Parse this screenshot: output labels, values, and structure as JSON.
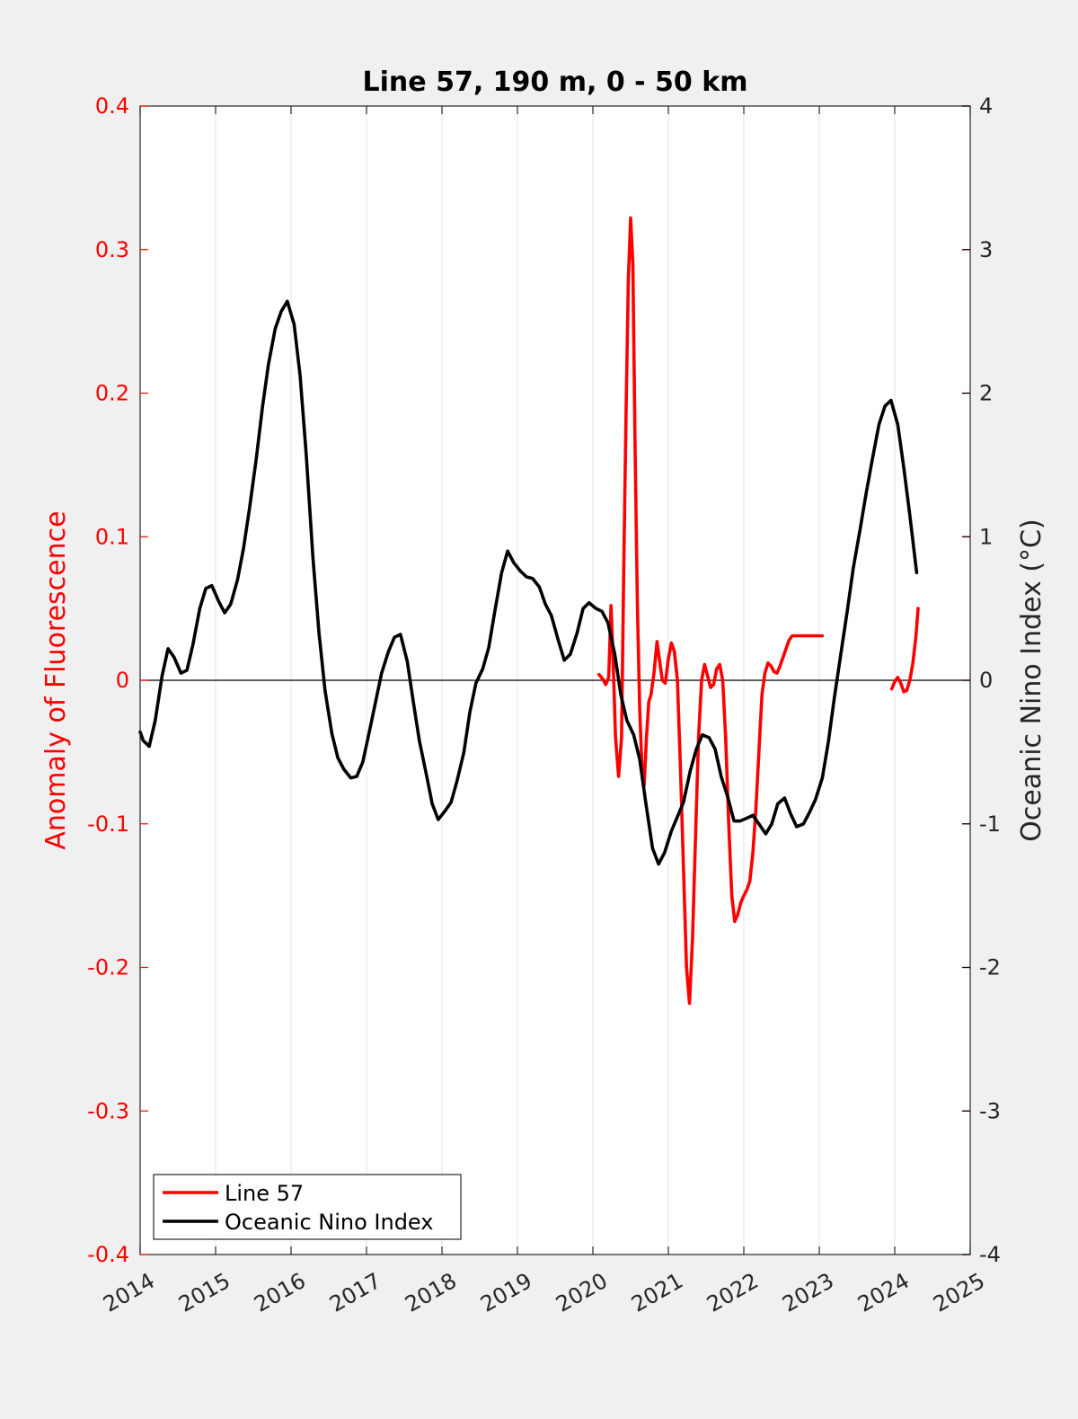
{
  "colors": {
    "background": "#f0f0f0",
    "plot_bg": "#ffffff",
    "fluorescence": "#ff0000",
    "oni": "#000000",
    "grid": "#e3e3e3",
    "axis_dark": "#262626"
  },
  "chart_data": {
    "type": "line",
    "title": "Line 57, 190 m, 0 - 50 km",
    "xlim": [
      2014,
      2025
    ],
    "x_ticks": [
      2014,
      2015,
      2016,
      2017,
      2018,
      2019,
      2020,
      2021,
      2022,
      2023,
      2024,
      2025
    ],
    "x_tick_labels": [
      "2014",
      "2015",
      "2016",
      "2017",
      "2018",
      "2019",
      "2020",
      "2021",
      "2022",
      "2023",
      "2024",
      "2025"
    ],
    "grid": "vertical",
    "left_axis": {
      "label": "Anomaly of Fluorescence",
      "lim": [
        -0.4,
        0.4
      ],
      "ticks": [
        -0.4,
        -0.3,
        -0.2,
        -0.1,
        0,
        0.1,
        0.2,
        0.3,
        0.4
      ],
      "tick_labels": [
        "-0.4",
        "-0.3",
        "-0.2",
        "-0.1",
        "0",
        "0.1",
        "0.2",
        "0.3",
        "0.4"
      ],
      "color": "#ff0000"
    },
    "right_axis": {
      "label": "Oceanic Nino Index (°C)",
      "lim": [
        -4,
        4
      ],
      "ticks": [
        -4,
        -3,
        -2,
        -1,
        0,
        1,
        2,
        3,
        4
      ],
      "tick_labels": [
        "-4",
        "-3",
        "-2",
        "-1",
        "0",
        "1",
        "2",
        "3",
        "4"
      ],
      "color": "#000000"
    },
    "zero_line": 0,
    "legend": {
      "position": "bottom-left",
      "entries": [
        "Line 57",
        "Oceanic Nino Index"
      ]
    },
    "series": [
      {
        "name": "Line 57",
        "axis": "left",
        "color": "#ff0000",
        "segments": [
          {
            "x": [
              2020.08,
              2020.13,
              2020.17,
              2020.21,
              2020.24,
              2020.27,
              2020.3,
              2020.34,
              2020.38,
              2020.41,
              2020.44,
              2020.47,
              2020.5,
              2020.53,
              2020.56,
              2020.59,
              2020.62,
              2020.65,
              2020.68,
              2020.71,
              2020.74,
              2020.77,
              2020.81,
              2020.85,
              2020.88,
              2020.92,
              2020.96,
              2021.0,
              2021.04,
              2021.08,
              2021.12,
              2021.16,
              2021.2,
              2021.24,
              2021.28,
              2021.32,
              2021.36,
              2021.4,
              2021.44,
              2021.48,
              2021.52,
              2021.56,
              2021.6,
              2021.64,
              2021.68,
              2021.72,
              2021.76,
              2021.8,
              2021.84,
              2021.88,
              2021.92,
              2021.96,
              2022.0,
              2022.04,
              2022.08,
              2022.12,
              2022.16,
              2022.2,
              2022.24,
              2022.28,
              2022.32,
              2022.36,
              2022.4,
              2022.44,
              2022.48,
              2022.52,
              2022.56,
              2022.6,
              2022.64,
              2022.68,
              2022.72,
              2022.76,
              2022.8,
              2022.84,
              2022.88,
              2022.92,
              2022.96,
              2023.0,
              2023.04
            ],
            "y": [
              0.004,
              0.001,
              -0.003,
              0.002,
              0.052,
              0.01,
              -0.04,
              -0.067,
              -0.04,
              0.08,
              0.19,
              0.28,
              0.322,
              0.29,
              0.16,
              0.05,
              -0.02,
              -0.06,
              -0.073,
              -0.04,
              -0.015,
              -0.01,
              0.005,
              0.027,
              0.015,
              0.0,
              -0.002,
              0.015,
              0.026,
              0.02,
              0.0,
              -0.06,
              -0.13,
              -0.2,
              -0.225,
              -0.18,
              -0.11,
              -0.04,
              0.0,
              0.011,
              0.003,
              -0.005,
              -0.003,
              0.008,
              0.011,
              0.0,
              -0.04,
              -0.1,
              -0.15,
              -0.168,
              -0.163,
              -0.155,
              -0.15,
              -0.146,
              -0.14,
              -0.12,
              -0.09,
              -0.05,
              -0.01,
              0.005,
              0.012,
              0.01,
              0.006,
              0.005,
              0.01,
              0.016,
              0.022,
              0.028,
              0.031,
              0.031,
              0.031,
              0.031,
              0.031,
              0.031,
              0.031,
              0.031,
              0.031,
              0.031,
              0.031
            ]
          },
          {
            "x": [
              2023.96,
              2024.0,
              2024.04,
              2024.08,
              2024.12,
              2024.16,
              2024.2,
              2024.24,
              2024.28,
              2024.31
            ],
            "y": [
              -0.006,
              -0.001,
              0.002,
              -0.002,
              -0.008,
              -0.007,
              0.0,
              0.012,
              0.03,
              0.05
            ]
          }
        ]
      },
      {
        "name": "Oceanic Nino Index",
        "axis": "right",
        "color": "#000000",
        "segments": [
          {
            "x": [
              2014.0,
              2014.04,
              2014.12,
              2014.2,
              2014.29,
              2014.37,
              2014.45,
              2014.54,
              2014.62,
              2014.7,
              2014.79,
              2014.87,
              2014.95,
              2015.04,
              2015.12,
              2015.2,
              2015.29,
              2015.37,
              2015.45,
              2015.54,
              2015.62,
              2015.7,
              2015.79,
              2015.87,
              2015.95,
              2016.04,
              2016.12,
              2016.2,
              2016.29,
              2016.37,
              2016.45,
              2016.54,
              2016.62,
              2016.7,
              2016.79,
              2016.87,
              2016.95,
              2017.04,
              2017.12,
              2017.2,
              2017.29,
              2017.37,
              2017.45,
              2017.54,
              2017.62,
              2017.7,
              2017.79,
              2017.87,
              2017.95,
              2018.04,
              2018.12,
              2018.2,
              2018.29,
              2018.37,
              2018.45,
              2018.54,
              2018.62,
              2018.7,
              2018.79,
              2018.87,
              2018.95,
              2019.04,
              2019.12,
              2019.2,
              2019.29,
              2019.37,
              2019.45,
              2019.54,
              2019.62,
              2019.7,
              2019.79,
              2019.87,
              2019.95,
              2020.04,
              2020.12,
              2020.2,
              2020.29,
              2020.37,
              2020.45,
              2020.54,
              2020.62,
              2020.7,
              2020.79,
              2020.87,
              2020.95,
              2021.04,
              2021.12,
              2021.2,
              2021.29,
              2021.37,
              2021.45,
              2021.54,
              2021.62,
              2021.7,
              2021.79,
              2021.87,
              2021.95,
              2022.04,
              2022.12,
              2022.2,
              2022.29,
              2022.37,
              2022.45,
              2022.54,
              2022.62,
              2022.7,
              2022.79,
              2022.87,
              2022.95,
              2023.04,
              2023.12,
              2023.2,
              2023.29,
              2023.37,
              2023.45,
              2023.54,
              2023.62,
              2023.7,
              2023.79,
              2023.87,
              2023.95,
              2024.04,
              2024.12,
              2024.2,
              2024.29
            ],
            "y": [
              -0.36,
              -0.42,
              -0.46,
              -0.28,
              0.03,
              0.22,
              0.16,
              0.05,
              0.07,
              0.25,
              0.5,
              0.64,
              0.66,
              0.55,
              0.47,
              0.53,
              0.7,
              0.92,
              1.2,
              1.55,
              1.9,
              2.2,
              2.45,
              2.57,
              2.64,
              2.48,
              2.12,
              1.58,
              0.85,
              0.33,
              -0.07,
              -0.37,
              -0.54,
              -0.62,
              -0.68,
              -0.67,
              -0.57,
              -0.35,
              -0.15,
              0.05,
              0.2,
              0.3,
              0.32,
              0.13,
              -0.15,
              -0.42,
              -0.65,
              -0.86,
              -0.97,
              -0.91,
              -0.85,
              -0.7,
              -0.5,
              -0.22,
              -0.02,
              0.08,
              0.23,
              0.48,
              0.75,
              0.9,
              0.82,
              0.76,
              0.72,
              0.71,
              0.65,
              0.53,
              0.45,
              0.28,
              0.14,
              0.18,
              0.33,
              0.5,
              0.54,
              0.5,
              0.48,
              0.4,
              0.18,
              -0.1,
              -0.28,
              -0.38,
              -0.55,
              -0.85,
              -1.17,
              -1.28,
              -1.2,
              -1.05,
              -0.95,
              -0.85,
              -0.63,
              -0.48,
              -0.38,
              -0.4,
              -0.48,
              -0.67,
              -0.82,
              -0.98,
              -0.98,
              -0.96,
              -0.94,
              -1.0,
              -1.07,
              -1.0,
              -0.86,
              -0.82,
              -0.93,
              -1.02,
              -1.0,
              -0.92,
              -0.83,
              -0.68,
              -0.43,
              -0.12,
              0.2,
              0.48,
              0.78,
              1.05,
              1.3,
              1.53,
              1.78,
              1.91,
              1.95,
              1.78,
              1.48,
              1.15,
              0.75
            ]
          }
        ]
      }
    ]
  }
}
